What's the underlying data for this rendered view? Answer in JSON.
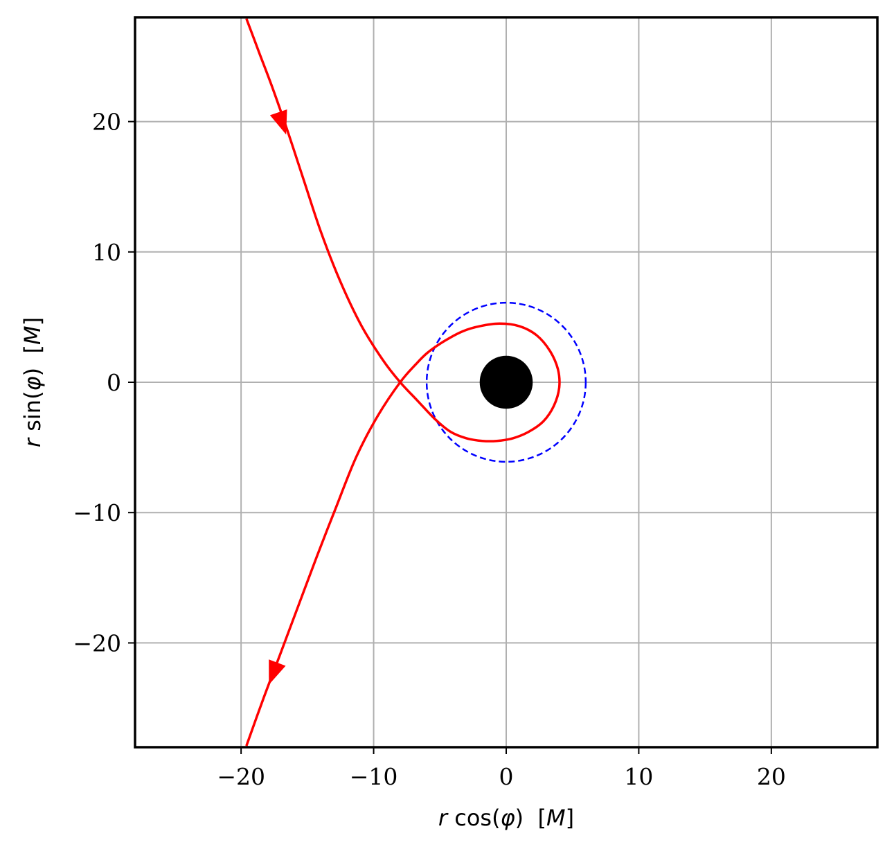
{
  "chart_data": {
    "type": "line",
    "title": "",
    "xlabel": {
      "var": "r",
      "func": " cos(",
      "angle": "φ",
      "close": ")",
      "unit_open": "  [",
      "unit": "M",
      "unit_close": "]"
    },
    "ylabel": {
      "var": "r",
      "func": " sin(",
      "angle": "φ",
      "close": ")",
      "unit_open": "  [",
      "unit": "M",
      "unit_close": "]"
    },
    "xlim": [
      -28,
      28
    ],
    "ylim": [
      -28,
      28
    ],
    "grid": true,
    "x_ticks": [
      {
        "value": -20,
        "label": "−20"
      },
      {
        "value": -10,
        "label": "−10"
      },
      {
        "value": 0,
        "label": "0"
      },
      {
        "value": 10,
        "label": "10"
      },
      {
        "value": 20,
        "label": "20"
      }
    ],
    "y_ticks": [
      {
        "value": -20,
        "label": "−20"
      },
      {
        "value": -10,
        "label": "−10"
      },
      {
        "value": 0,
        "label": "0"
      },
      {
        "value": 10,
        "label": "10"
      },
      {
        "value": 20,
        "label": "20"
      }
    ],
    "black_hole": {
      "x": 0,
      "y": 0,
      "radius": 2,
      "color": "#000000"
    },
    "isco_circle": {
      "x": 0,
      "y": 0,
      "radius": 6,
      "color": "#0000ff",
      "style": "dashed"
    },
    "trajectory": {
      "color": "#ff0000",
      "points": [
        [
          -19.6,
          27.9
        ],
        [
          -18.6,
          25.2
        ],
        [
          -17.6,
          22.5
        ],
        [
          -16.5,
          19.3
        ],
        [
          -15.3,
          15.6
        ],
        [
          -14.0,
          11.6
        ],
        [
          -12.5,
          7.7
        ],
        [
          -10.9,
          4.3
        ],
        [
          -9.3,
          1.7
        ],
        [
          -8.0,
          0.0
        ],
        [
          -6.7,
          -1.4
        ],
        [
          -5.4,
          -2.8
        ],
        [
          -4.2,
          -3.8
        ],
        [
          -3.0,
          -4.3
        ],
        [
          -1.8,
          -4.5
        ],
        [
          -0.7,
          -4.5
        ],
        [
          0.5,
          -4.3
        ],
        [
          1.7,
          -3.8
        ],
        [
          2.8,
          -3.0
        ],
        [
          3.6,
          -1.8
        ],
        [
          4.0,
          -0.4
        ],
        [
          3.9,
          1.0
        ],
        [
          3.3,
          2.4
        ],
        [
          2.3,
          3.6
        ],
        [
          1.0,
          4.3
        ],
        [
          -0.5,
          4.5
        ],
        [
          -2.0,
          4.3
        ],
        [
          -3.3,
          3.9
        ],
        [
          -4.6,
          3.2
        ],
        [
          -5.9,
          2.3
        ],
        [
          -6.8,
          1.4
        ],
        [
          -8.0,
          0.0
        ],
        [
          -9.7,
          -2.6
        ],
        [
          -11.3,
          -5.7
        ],
        [
          -12.8,
          -9.5
        ],
        [
          -14.3,
          -13.4
        ],
        [
          -15.7,
          -17.2
        ],
        [
          -17.1,
          -21.0
        ],
        [
          -18.4,
          -24.5
        ],
        [
          -19.6,
          -27.9
        ]
      ],
      "arrows": [
        {
          "x": -16.6,
          "y": 19.0,
          "dx": 0.32,
          "dy": -0.95
        },
        {
          "x": -17.9,
          "y": -23.2,
          "dx": -0.35,
          "dy": -0.94
        }
      ]
    }
  }
}
